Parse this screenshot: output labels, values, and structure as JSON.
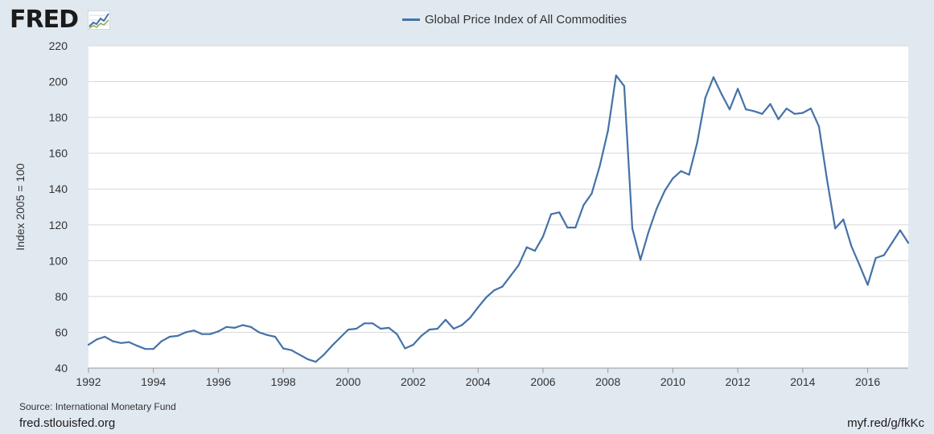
{
  "header": {
    "logo_text": "FRED",
    "logo_icon": "line-chart-icon"
  },
  "footer": {
    "source": "Source: International Monetary Fund",
    "site": "fred.stlouisfed.org",
    "short_url": "myf.red/g/fkKc"
  },
  "colors": {
    "background": "#e1e9f0",
    "plot_area": "#ffffff",
    "series": "#4572a7",
    "grid": "#d8d8d8"
  },
  "chart_data": {
    "type": "line",
    "title": "",
    "xlabel": "",
    "ylabel": "Index 2005 = 100",
    "ylim": [
      40,
      220
    ],
    "xlim": [
      1992.0,
      2017.25
    ],
    "grid": true,
    "legend_placement": "top-center",
    "y_ticks": [
      "40",
      "60",
      "80",
      "100",
      "120",
      "140",
      "160",
      "180",
      "200",
      "220"
    ],
    "x_ticks": [
      "1992",
      "1994",
      "1996",
      "1998",
      "2000",
      "2002",
      "2004",
      "2006",
      "2008",
      "2010",
      "2012",
      "2014",
      "2016"
    ],
    "series": [
      {
        "name": "Global Price Index of All Commodities",
        "x": [
          1992.0,
          1992.25,
          1992.5,
          1992.75,
          1993.0,
          1993.25,
          1993.5,
          1993.75,
          1994.0,
          1994.25,
          1994.5,
          1994.75,
          1995.0,
          1995.25,
          1995.5,
          1995.75,
          1996.0,
          1996.25,
          1996.5,
          1996.75,
          1997.0,
          1997.25,
          1997.5,
          1997.75,
          1998.0,
          1998.25,
          1998.5,
          1998.75,
          1999.0,
          1999.25,
          1999.5,
          1999.75,
          2000.0,
          2000.25,
          2000.5,
          2000.75,
          2001.0,
          2001.25,
          2001.5,
          2001.75,
          2002.0,
          2002.25,
          2002.5,
          2002.75,
          2003.0,
          2003.25,
          2003.5,
          2003.75,
          2004.0,
          2004.25,
          2004.5,
          2004.75,
          2005.0,
          2005.25,
          2005.5,
          2005.75,
          2006.0,
          2006.25,
          2006.5,
          2006.75,
          2007.0,
          2007.25,
          2007.5,
          2007.75,
          2008.0,
          2008.25,
          2008.5,
          2008.75,
          2009.0,
          2009.25,
          2009.5,
          2009.75,
          2010.0,
          2010.25,
          2010.5,
          2010.75,
          2011.0,
          2011.25,
          2011.5,
          2011.75,
          2012.0,
          2012.25,
          2012.5,
          2012.75,
          2013.0,
          2013.25,
          2013.5,
          2013.75,
          2014.0,
          2014.25,
          2014.5,
          2014.75,
          2015.0,
          2015.25,
          2015.5,
          2015.75,
          2016.0,
          2016.25,
          2016.5,
          2016.75,
          2017.0,
          2017.25
        ],
        "values": [
          53,
          56,
          57.5,
          55,
          54,
          54.5,
          52.5,
          50.7,
          50.7,
          55,
          57.5,
          58,
          60,
          61,
          59,
          59,
          60.5,
          63,
          62.5,
          64,
          63,
          60,
          58.5,
          57.5,
          51,
          50,
          47.5,
          45,
          43.5,
          47.5,
          52.5,
          57,
          61.5,
          62,
          65,
          65,
          62,
          62.5,
          59,
          51,
          53,
          58,
          61.5,
          62,
          67,
          62,
          64,
          68,
          74,
          79.5,
          83.5,
          85.5,
          91.5,
          97.5,
          107.5,
          105.5,
          113.5,
          126,
          127,
          118.5,
          118.5,
          131,
          137.5,
          153,
          172.5,
          203.5,
          197.5,
          118,
          100.5,
          116,
          129,
          139,
          146,
          150,
          148,
          166,
          191,
          202.5,
          193,
          184.5,
          196,
          184.5,
          183.5,
          182,
          187.5,
          179,
          185,
          182,
          182.5,
          185,
          175,
          145,
          118,
          123,
          108,
          97.5,
          86.5,
          101.5,
          103,
          110,
          117,
          110
        ]
      }
    ]
  }
}
